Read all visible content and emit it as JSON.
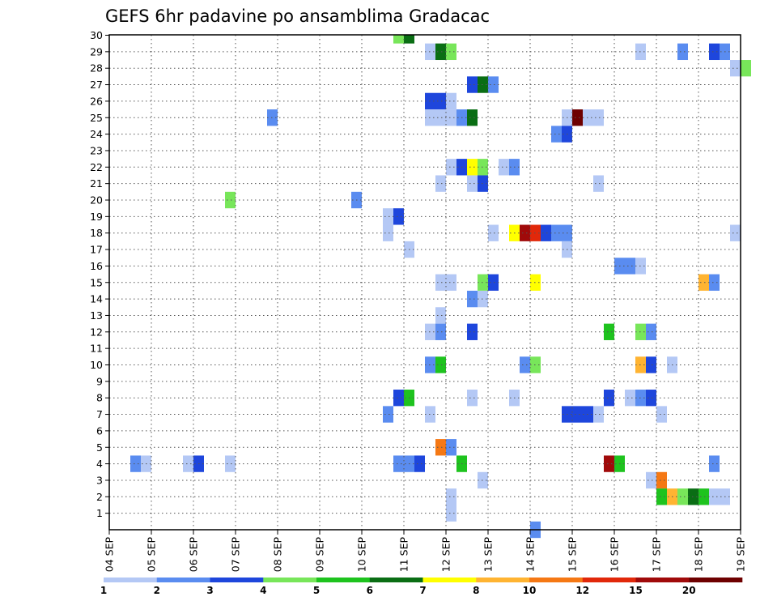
{
  "chart_data": {
    "type": "heatmap",
    "title": "GEFS 6hr padavine po ansamblima Gradacac",
    "xlabel": "",
    "ylabel": "",
    "x_tick_labels": [
      "04 SEP",
      "05 SEP",
      "06 SEP",
      "07 SEP",
      "08 SEP",
      "09 SEP",
      "10 SEP",
      "11 SEP",
      "12 SEP",
      "13 SEP",
      "14 SEP",
      "15 SEP",
      "16 SEP",
      "17 SEP",
      "18 SEP",
      "19 SEP"
    ],
    "y_tick_labels": [
      "1",
      "2",
      "3",
      "4",
      "5",
      "6",
      "7",
      "8",
      "9",
      "10",
      "11",
      "12",
      "13",
      "14",
      "15",
      "16",
      "17",
      "18",
      "19",
      "20",
      "21",
      "22",
      "23",
      "24",
      "25",
      "26",
      "27",
      "28",
      "29",
      "30"
    ],
    "x_range": [
      "04 SEP",
      "19 SEP"
    ],
    "y_range": [
      1,
      30
    ],
    "time_step_hours": 6,
    "grid": true,
    "colorbar": {
      "levels": [
        "1",
        "2",
        "3",
        "4",
        "5",
        "6",
        "7",
        "8",
        "10",
        "12",
        "15",
        "20"
      ],
      "colors": [
        "#b4c8f5",
        "#5a8cf0",
        "#1e46dc",
        "#78e65a",
        "#1ec31e",
        "#0a6e14",
        "#ffff00",
        "#ffb432",
        "#f57814",
        "#e1280a",
        "#a00a0a",
        "#6e0000"
      ]
    },
    "cells": [
      {
        "member": 30,
        "time": "10 SEP 18",
        "class": 4
      },
      {
        "member": 30,
        "time": "11 SEP 00",
        "class": 6
      },
      {
        "member": 29,
        "time": "11 SEP 12",
        "class": 1
      },
      {
        "member": 29,
        "time": "11 SEP 18",
        "class": 6
      },
      {
        "member": 29,
        "time": "12 SEP 00",
        "class": 4
      },
      {
        "member": 29,
        "time": "16 SEP 12",
        "class": 1
      },
      {
        "member": 29,
        "time": "17 SEP 12",
        "class": 2
      },
      {
        "member": 29,
        "time": "18 SEP 06",
        "class": 3
      },
      {
        "member": 29,
        "time": "18 SEP 12",
        "class": 2
      },
      {
        "member": 28,
        "time": "18 SEP 18",
        "class": 1
      },
      {
        "member": 28,
        "time": "19 SEP 00",
        "class": 4
      },
      {
        "member": 27,
        "time": "12 SEP 12",
        "class": 3
      },
      {
        "member": 27,
        "time": "12 SEP 18",
        "class": 6
      },
      {
        "member": 27,
        "time": "13 SEP 00",
        "class": 2
      },
      {
        "member": 26,
        "time": "11 SEP 12",
        "class": 3
      },
      {
        "member": 26,
        "time": "11 SEP 18",
        "class": 3
      },
      {
        "member": 26,
        "time": "12 SEP 00",
        "class": 1
      },
      {
        "member": 25,
        "time": "07 SEP 18",
        "class": 2
      },
      {
        "member": 25,
        "time": "11 SEP 12",
        "class": 1
      },
      {
        "member": 25,
        "time": "11 SEP 18",
        "class": 1
      },
      {
        "member": 25,
        "time": "12 SEP 00",
        "class": 1
      },
      {
        "member": 25,
        "time": "12 SEP 06",
        "class": 2
      },
      {
        "member": 25,
        "time": "12 SEP 12",
        "class": 6
      },
      {
        "member": 25,
        "time": "14 SEP 18",
        "class": 1
      },
      {
        "member": 25,
        "time": "15 SEP 00",
        "class": 12
      },
      {
        "member": 25,
        "time": "15 SEP 06",
        "class": 1
      },
      {
        "member": 25,
        "time": "15 SEP 12",
        "class": 1
      },
      {
        "member": 24,
        "time": "14 SEP 12",
        "class": 2
      },
      {
        "member": 24,
        "time": "14 SEP 18",
        "class": 3
      },
      {
        "member": 22,
        "time": "12 SEP 00",
        "class": 1
      },
      {
        "member": 22,
        "time": "12 SEP 06",
        "class": 3
      },
      {
        "member": 22,
        "time": "12 SEP 12",
        "class": 7
      },
      {
        "member": 22,
        "time": "12 SEP 18",
        "class": 4
      },
      {
        "member": 22,
        "time": "13 SEP 06",
        "class": 1
      },
      {
        "member": 22,
        "time": "13 SEP 12",
        "class": 2
      },
      {
        "member": 21,
        "time": "11 SEP 18",
        "class": 1
      },
      {
        "member": 21,
        "time": "12 SEP 12",
        "class": 1
      },
      {
        "member": 21,
        "time": "12 SEP 18",
        "class": 3
      },
      {
        "member": 21,
        "time": "15 SEP 12",
        "class": 1
      },
      {
        "member": 20,
        "time": "06 SEP 18",
        "class": 4
      },
      {
        "member": 20,
        "time": "09 SEP 18",
        "class": 2
      },
      {
        "member": 19,
        "time": "10 SEP 12",
        "class": 1
      },
      {
        "member": 19,
        "time": "10 SEP 18",
        "class": 3
      },
      {
        "member": 18,
        "time": "10 SEP 12",
        "class": 1
      },
      {
        "member": 18,
        "time": "13 SEP 00",
        "class": 1
      },
      {
        "member": 18,
        "time": "13 SEP 12",
        "class": 7
      },
      {
        "member": 18,
        "time": "13 SEP 18",
        "class": 11
      },
      {
        "member": 18,
        "time": "14 SEP 00",
        "class": 10
      },
      {
        "member": 18,
        "time": "14 SEP 06",
        "class": 3
      },
      {
        "member": 18,
        "time": "14 SEP 12",
        "class": 2
      },
      {
        "member": 18,
        "time": "14 SEP 18",
        "class": 2
      },
      {
        "member": 18,
        "time": "18 SEP 18",
        "class": 1
      },
      {
        "member": 17,
        "time": "11 SEP 00",
        "class": 1
      },
      {
        "member": 17,
        "time": "14 SEP 18",
        "class": 1
      },
      {
        "member": 16,
        "time": "16 SEP 00",
        "class": 2
      },
      {
        "member": 16,
        "time": "16 SEP 06",
        "class": 2
      },
      {
        "member": 16,
        "time": "16 SEP 12",
        "class": 1
      },
      {
        "member": 15,
        "time": "11 SEP 18",
        "class": 1
      },
      {
        "member": 15,
        "time": "12 SEP 00",
        "class": 1
      },
      {
        "member": 15,
        "time": "12 SEP 18",
        "class": 4
      },
      {
        "member": 15,
        "time": "13 SEP 00",
        "class": 3
      },
      {
        "member": 15,
        "time": "14 SEP 00",
        "class": 7
      },
      {
        "member": 15,
        "time": "18 SEP 00",
        "class": 8
      },
      {
        "member": 15,
        "time": "18 SEP 06",
        "class": 2
      },
      {
        "member": 14,
        "time": "12 SEP 12",
        "class": 2
      },
      {
        "member": 14,
        "time": "12 SEP 18",
        "class": 1
      },
      {
        "member": 13,
        "time": "11 SEP 18",
        "class": 1
      },
      {
        "member": 12,
        "time": "11 SEP 12",
        "class": 1
      },
      {
        "member": 12,
        "time": "11 SEP 18",
        "class": 2
      },
      {
        "member": 12,
        "time": "12 SEP 12",
        "class": 3
      },
      {
        "member": 12,
        "time": "15 SEP 18",
        "class": 5
      },
      {
        "member": 12,
        "time": "16 SEP 12",
        "class": 4
      },
      {
        "member": 12,
        "time": "16 SEP 18",
        "class": 2
      },
      {
        "member": 10,
        "time": "11 SEP 12",
        "class": 2
      },
      {
        "member": 10,
        "time": "11 SEP 18",
        "class": 5
      },
      {
        "member": 10,
        "time": "13 SEP 18",
        "class": 2
      },
      {
        "member": 10,
        "time": "14 SEP 00",
        "class": 4
      },
      {
        "member": 10,
        "time": "16 SEP 12",
        "class": 8
      },
      {
        "member": 10,
        "time": "16 SEP 18",
        "class": 3
      },
      {
        "member": 10,
        "time": "17 SEP 06",
        "class": 1
      },
      {
        "member": 8,
        "time": "10 SEP 18",
        "class": 3
      },
      {
        "member": 8,
        "time": "11 SEP 00",
        "class": 5
      },
      {
        "member": 8,
        "time": "12 SEP 12",
        "class": 1
      },
      {
        "member": 8,
        "time": "13 SEP 12",
        "class": 1
      },
      {
        "member": 8,
        "time": "15 SEP 18",
        "class": 3
      },
      {
        "member": 8,
        "time": "16 SEP 06",
        "class": 1
      },
      {
        "member": 8,
        "time": "16 SEP 12",
        "class": 2
      },
      {
        "member": 8,
        "time": "16 SEP 18",
        "class": 3
      },
      {
        "member": 7,
        "time": "10 SEP 12",
        "class": 2
      },
      {
        "member": 7,
        "time": "11 SEP 12",
        "class": 1
      },
      {
        "member": 7,
        "time": "14 SEP 18",
        "class": 3
      },
      {
        "member": 7,
        "time": "15 SEP 00",
        "class": 3
      },
      {
        "member": 7,
        "time": "15 SEP 06",
        "class": 3
      },
      {
        "member": 7,
        "time": "15 SEP 12",
        "class": 1
      },
      {
        "member": 7,
        "time": "17 SEP 00",
        "class": 1
      },
      {
        "member": 5,
        "time": "11 SEP 18",
        "class": 9
      },
      {
        "member": 5,
        "time": "12 SEP 00",
        "class": 2
      },
      {
        "member": 4,
        "time": "04 SEP 12",
        "class": 2
      },
      {
        "member": 4,
        "time": "04 SEP 18",
        "class": 1
      },
      {
        "member": 4,
        "time": "05 SEP 18",
        "class": 1
      },
      {
        "member": 4,
        "time": "06 SEP 00",
        "class": 3
      },
      {
        "member": 4,
        "time": "06 SEP 18",
        "class": 1
      },
      {
        "member": 4,
        "time": "10 SEP 18",
        "class": 2
      },
      {
        "member": 4,
        "time": "11 SEP 00",
        "class": 2
      },
      {
        "member": 4,
        "time": "11 SEP 06",
        "class": 3
      },
      {
        "member": 4,
        "time": "12 SEP 06",
        "class": 5
      },
      {
        "member": 4,
        "time": "15 SEP 18",
        "class": 11
      },
      {
        "member": 4,
        "time": "16 SEP 00",
        "class": 5
      },
      {
        "member": 4,
        "time": "18 SEP 06",
        "class": 2
      },
      {
        "member": 3,
        "time": "12 SEP 18",
        "class": 1
      },
      {
        "member": 3,
        "time": "16 SEP 18",
        "class": 1
      },
      {
        "member": 3,
        "time": "17 SEP 00",
        "class": 9
      },
      {
        "member": 2,
        "time": "12 SEP 00",
        "class": 1
      },
      {
        "member": 2,
        "time": "17 SEP 00",
        "class": 5
      },
      {
        "member": 2,
        "time": "17 SEP 06",
        "class": 8
      },
      {
        "member": 2,
        "time": "17 SEP 12",
        "class": 4
      },
      {
        "member": 2,
        "time": "17 SEP 18",
        "class": 6
      },
      {
        "member": 2,
        "time": "18 SEP 00",
        "class": 5
      },
      {
        "member": 2,
        "time": "18 SEP 06",
        "class": 1
      },
      {
        "member": 2,
        "time": "18 SEP 12",
        "class": 1
      },
      {
        "member": 1,
        "time": "12 SEP 00",
        "class": 1
      },
      {
        "member": 0,
        "time": "14 SEP 00",
        "class": 2
      }
    ]
  }
}
